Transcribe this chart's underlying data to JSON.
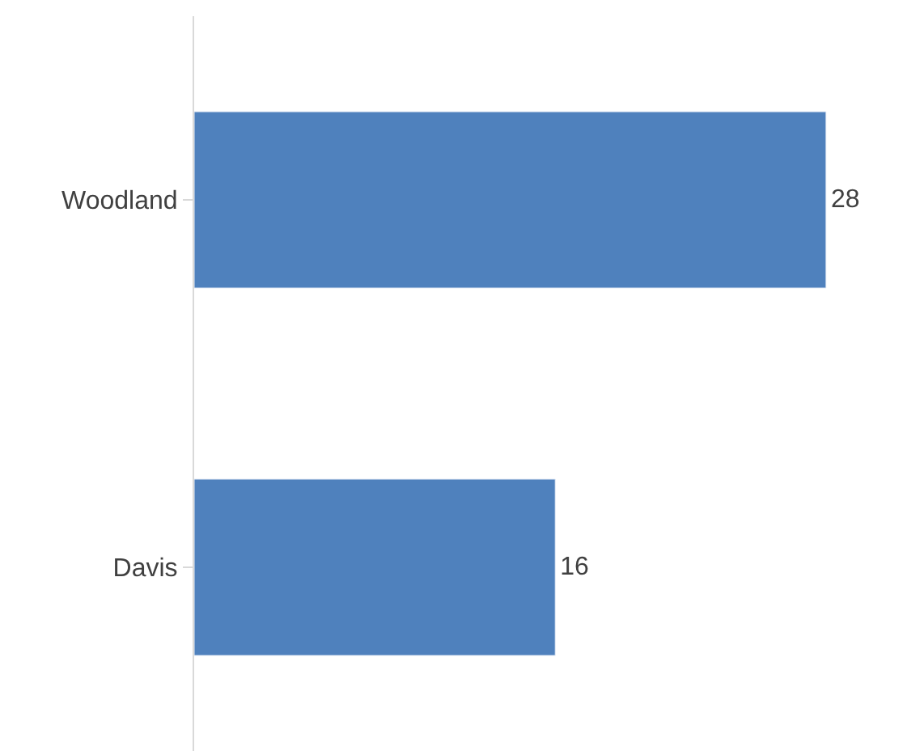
{
  "chart_data": {
    "type": "bar",
    "orientation": "horizontal",
    "categories": [
      "Woodland",
      "Davis"
    ],
    "values": [
      28,
      16
    ],
    "color": "#4f81bd",
    "data_labels": true
  }
}
